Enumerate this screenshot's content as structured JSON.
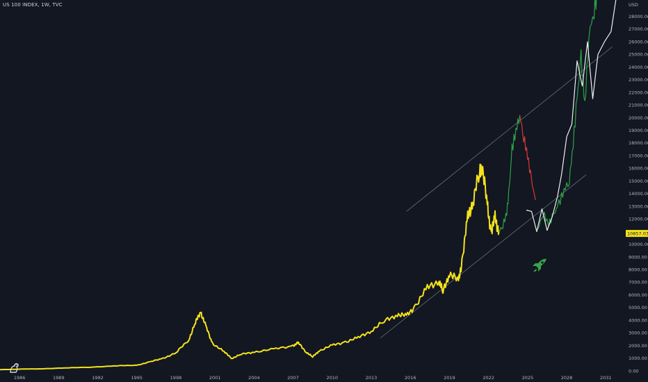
{
  "header": {
    "title": "US 100 INDEX, 1W, TVC"
  },
  "colors": {
    "background": "#131722",
    "history": "#f5e31c",
    "projection_up": "#2ea34a",
    "projection_down": "#d63a3a",
    "alt_path": "#f0f0f0",
    "channel": "#9a9ea8",
    "last_price_tag": "#f5e31c",
    "rocket": "#36a54a"
  },
  "icons": {
    "rocket": "rocket-icon",
    "logo": "tradingview-logo-icon"
  },
  "chart_data": {
    "type": "line",
    "currency": "USD",
    "last_price": "10857.03",
    "y_ticks": [
      0,
      1000,
      2000,
      3000,
      4000,
      5000,
      6000,
      7000,
      8000,
      9000,
      10000,
      11000,
      12000,
      13000,
      14000,
      15000,
      16000,
      17000,
      18000,
      19000,
      20000,
      21000,
      22000,
      23000,
      24000,
      25000,
      26000,
      27000,
      28000
    ],
    "y_tick_labels": [
      "0.00",
      "1000.00",
      "2000.00",
      "3000.00",
      "4000.00",
      "5000.00",
      "6000.00",
      "7000.00",
      "8000.00",
      "9000.00",
      "10000.00",
      "11000.00",
      "12000.00",
      "13000.00",
      "14000.00",
      "15000.00",
      "16000.00",
      "17000.00",
      "18000.00",
      "19000.00",
      "20000.00",
      "21000.00",
      "22000.00",
      "23000.00",
      "24000.00",
      "25000.00",
      "26000.00",
      "27000.00",
      "28000.00"
    ],
    "x_tick_labels": [
      "1986",
      "1989",
      "1992",
      "1995",
      "1998",
      "2001",
      "2004",
      "2007",
      "2010",
      "2013",
      "2016",
      "2019",
      "2022",
      "2025",
      "2028",
      "2031"
    ],
    "x_range": [
      1985.0,
      2032.5
    ],
    "y_range": [
      0,
      29300
    ],
    "series": [
      {
        "role": "history",
        "x": [
          1985.0,
          1987.0,
          1988.0,
          1990.0,
          1992.0,
          1994.0,
          1995.5,
          1996.5,
          1997.5,
          1998.5,
          1999.5,
          2000.0,
          2000.4,
          2000.8,
          2001.3,
          2002.2,
          2002.8,
          2003.5,
          2004.5,
          2006.0,
          2007.5,
          2007.9,
          2008.5,
          2009.0,
          2009.5,
          2010.5,
          2011.5,
          2012.5,
          2013.5,
          2014.5,
          2015.5,
          2016.2,
          2016.9,
          2017.8,
          2018.7,
          2019.0,
          2019.5,
          2020.2,
          2020.5,
          2020.9,
          2021.3,
          2021.8,
          2022.0,
          2022.4,
          2022.7,
          2023.0,
          2023.3
        ],
        "values": [
          100,
          150,
          160,
          230,
          300,
          400,
          450,
          700,
          1000,
          1400,
          2500,
          3800,
          4700,
          3500,
          2200,
          1500,
          1000,
          1300,
          1500,
          1700,
          2000,
          2200,
          1500,
          1100,
          1600,
          2000,
          2300,
          2600,
          3200,
          3900,
          4500,
          4300,
          5200,
          6500,
          7200,
          6200,
          7800,
          7000,
          9000,
          12000,
          13500,
          15500,
          16400,
          13000,
          11000,
          12000,
          11000
        ]
      },
      {
        "role": "projection-up",
        "x": [
          2023.3,
          2023.6,
          2023.9,
          2024.1,
          2024.3,
          2024.6,
          2024.9
        ],
        "values": [
          11000,
          11500,
          12500,
          14500,
          17500,
          19000,
          20200
        ]
      },
      {
        "role": "projection-down",
        "x": [
          2024.9,
          2025.2,
          2025.5,
          2025.8,
          2026.1
        ],
        "values": [
          20200,
          18500,
          17000,
          15000,
          13500
        ]
      },
      {
        "role": "projection-up",
        "x": [
          2026.3,
          2026.7,
          2027.1,
          2027.5,
          2027.9,
          2028.3,
          2028.7,
          2029.0,
          2029.3,
          2029.6,
          2029.9,
          2030.2,
          2030.6,
          2030.9
        ],
        "values": [
          11200,
          12500,
          11600,
          12300,
          13200,
          14300,
          15000,
          18000,
          21500,
          24800,
          21000,
          26500,
          28500,
          30000
        ]
      },
      {
        "role": "alt-path",
        "x": [
          2025.4,
          2025.8,
          2026.2,
          2026.6,
          2027.0,
          2027.4,
          2027.8,
          2028.1,
          2028.5,
          2028.9,
          2029.3,
          2029.7,
          2030.1,
          2030.5,
          2030.9,
          2031.4,
          2031.9,
          2032.3
        ],
        "values": [
          12700,
          12600,
          11000,
          12800,
          11100,
          12200,
          13800,
          15500,
          18500,
          19500,
          24500,
          22500,
          26000,
          21500,
          25000,
          26000,
          26800,
          29500
        ]
      },
      {
        "role": "channel-upper",
        "x": [
          2016.2,
          2032.0
        ],
        "values": [
          12600,
          25600
        ]
      },
      {
        "role": "channel-lower",
        "x": [
          2014.2,
          2030.0
        ],
        "values": [
          2600,
          15500
        ]
      }
    ]
  }
}
